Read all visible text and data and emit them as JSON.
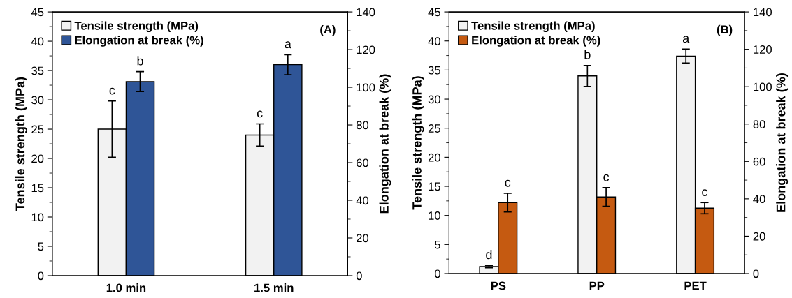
{
  "chart_data": [
    {
      "type": "bar",
      "categories": [
        "1.0 min",
        "1.5 min"
      ],
      "ylabel": "Tensile strength (MPa)",
      "y2label": "Elongation at break (%)",
      "ylim": [
        0,
        45
      ],
      "yticks": [
        0,
        {
          "value": 2.5,
          "label": null
        },
        5,
        {
          "value": 7.5,
          "label": null
        },
        10,
        {
          "value": 12.5,
          "label": null
        },
        15,
        {
          "value": 17.5,
          "label": null
        },
        20,
        {
          "value": 22.5,
          "label": null
        },
        25,
        {
          "value": 27.5,
          "label": null
        },
        30,
        {
          "value": 32.5,
          "label": null
        },
        35,
        {
          "value": 37.5,
          "label": null
        },
        40,
        {
          "value": 42.5,
          "label": null
        },
        45
      ],
      "y2lim": [
        0,
        140
      ],
      "y2ticks": [
        0,
        {
          "value": 10,
          "label": null
        },
        20,
        {
          "value": 30,
          "label": null
        },
        40,
        {
          "value": 50,
          "label": null
        },
        60,
        {
          "value": 70,
          "label": null
        },
        80,
        {
          "value": 90,
          "label": null
        },
        100,
        {
          "value": 110,
          "label": null
        },
        120,
        {
          "value": 130,
          "label": null
        },
        140
      ],
      "series": [
        {
          "name": "Tensile strength (MPa)",
          "color": "#f2f2f2",
          "values": [
            25.0,
            24.0
          ],
          "errors": [
            4.8,
            1.9
          ],
          "value_labels": [
            "c",
            "c"
          ]
        },
        {
          "name": "Elongation at break (%)",
          "color": "#2f5597",
          "values": [
            103,
            112
          ],
          "errors": [
            5.3,
            5.3
          ],
          "value_labels": [
            "b",
            "a"
          ],
          "axis": "y2"
        }
      ],
      "legend": "top left",
      "annotations": [
        "(A)"
      ]
    },
    {
      "type": "bar",
      "categories": [
        "PS",
        "PP",
        "PET"
      ],
      "ylabel": "Tensile strength (MPa)",
      "y2label": "Elongation at break (%)",
      "ylim": [
        0,
        45
      ],
      "yticks": [
        0,
        {
          "value": 2.5,
          "label": null
        },
        5,
        {
          "value": 7.5,
          "label": null
        },
        10,
        {
          "value": 12.5,
          "label": null
        },
        15,
        {
          "value": 17.5,
          "label": null
        },
        20,
        {
          "value": 22.5,
          "label": null
        },
        25,
        {
          "value": 27.5,
          "label": null
        },
        30,
        {
          "value": 32.5,
          "label": null
        },
        35,
        {
          "value": 37.5,
          "label": null
        },
        40,
        {
          "value": 42.5,
          "label": null
        },
        45
      ],
      "y2lim": [
        0,
        140
      ],
      "y2ticks": [
        0,
        {
          "value": 10,
          "label": null
        },
        20,
        {
          "value": 30,
          "label": null
        },
        40,
        {
          "value": 50,
          "label": null
        },
        60,
        {
          "value": 70,
          "label": null
        },
        80,
        {
          "value": 90,
          "label": null
        },
        100,
        {
          "value": 110,
          "label": null
        },
        120,
        {
          "value": 130,
          "label": null
        },
        140
      ],
      "series": [
        {
          "name": "Tensile strength (MPa)",
          "color": "#f2f2f2",
          "values": [
            1.2,
            34.0,
            37.4
          ],
          "errors": [
            0.2,
            1.8,
            1.2
          ],
          "value_labels": [
            "d",
            "b",
            "a"
          ]
        },
        {
          "name": "Elongation at break (%)",
          "color": "#c55a11",
          "values": [
            38,
            41,
            35
          ],
          "errors": [
            5,
            5,
            3
          ],
          "value_labels": [
            "c",
            "c",
            "c"
          ],
          "axis": "y2"
        }
      ],
      "legend": "top left",
      "annotations": [
        "(B)"
      ]
    }
  ]
}
